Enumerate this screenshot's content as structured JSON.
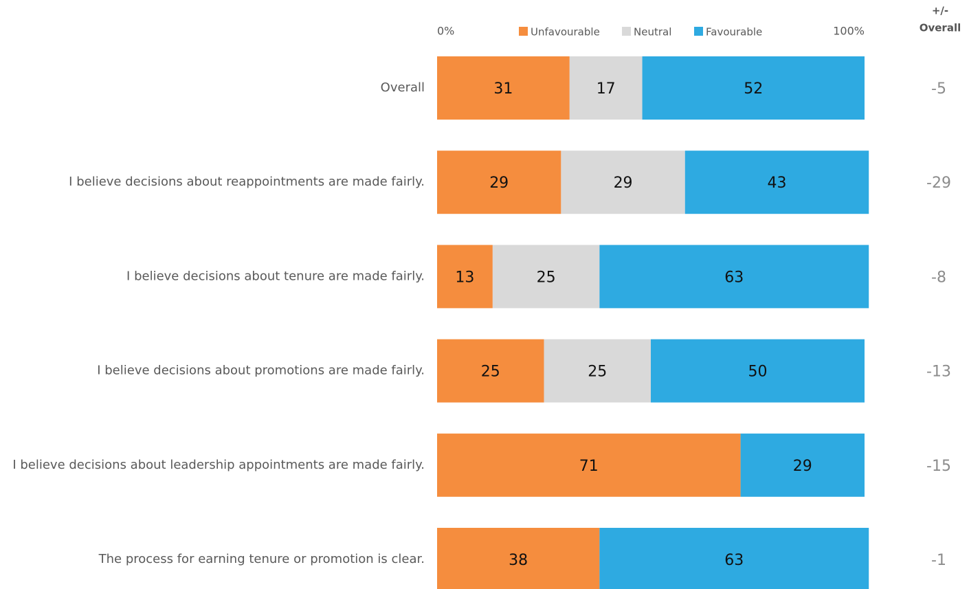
{
  "chart_data": {
    "type": "stacked-bar-horizontal",
    "categories": [
      "Overall",
      "I believe decisions about reappointments are made fairly.",
      "I believe decisions about tenure are made fairly.",
      "I believe decisions about promotions are made fairly.",
      "I believe decisions about leadership appointments are made fairly.",
      "The process for earning tenure or promotion is clear."
    ],
    "series": [
      {
        "name": "Unfavourable",
        "color": "#f58d3e",
        "values": [
          31,
          29,
          13,
          25,
          71,
          38
        ]
      },
      {
        "name": "Neutral",
        "color": "#d9d9d9",
        "values": [
          17,
          29,
          25,
          25,
          null,
          null
        ]
      },
      {
        "name": "Favourable",
        "color": "#2eaae1",
        "values": [
          52,
          43,
          63,
          50,
          29,
          63
        ]
      }
    ],
    "xlim": [
      0,
      100
    ],
    "xticks": [
      {
        "value": 0,
        "label": "0%"
      },
      {
        "value": 100,
        "label": "100%"
      }
    ],
    "diff_header": [
      "+/-",
      "Overall"
    ],
    "diff_values": [
      -5,
      -29,
      -8,
      -13,
      -15,
      -1
    ]
  }
}
